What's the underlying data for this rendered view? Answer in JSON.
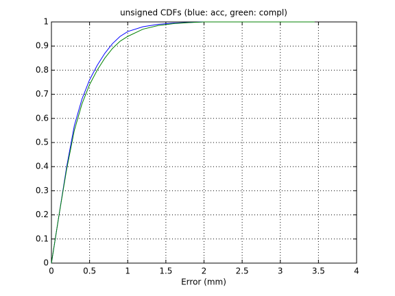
{
  "chart_data": {
    "type": "line",
    "title": "unsigned CDFs (blue: acc, green: compl)",
    "xlabel": "Error (mm)",
    "x": [
      0,
      0.1,
      0.2,
      0.3,
      0.4,
      0.5,
      0.6,
      0.7,
      0.8,
      0.9,
      1.0,
      1.2,
      1.4,
      1.6,
      1.8,
      2.0,
      2.1,
      3.45
    ],
    "series": [
      {
        "name": "acc",
        "color": "#0000ff",
        "values": [
          0,
          0.2,
          0.4,
          0.57,
          0.68,
          0.76,
          0.82,
          0.87,
          0.91,
          0.94,
          0.96,
          0.98,
          0.99,
          0.995,
          0.998,
          1,
          1,
          null
        ]
      },
      {
        "name": "compl",
        "color": "#008000",
        "values": [
          0,
          0.2,
          0.39,
          0.55,
          0.66,
          0.74,
          0.8,
          0.85,
          0.89,
          0.92,
          0.94,
          0.97,
          0.985,
          0.993,
          0.997,
          1,
          1,
          1
        ]
      }
    ],
    "xlim": [
      0,
      4
    ],
    "ylim": [
      0,
      1
    ],
    "xticks": [
      0,
      0.5,
      1,
      1.5,
      2,
      2.5,
      3,
      3.5,
      4
    ],
    "yticks": [
      0,
      0.1,
      0.2,
      0.3,
      0.4,
      0.5,
      0.6,
      0.7,
      0.8,
      0.9,
      1
    ],
    "grid": true
  }
}
